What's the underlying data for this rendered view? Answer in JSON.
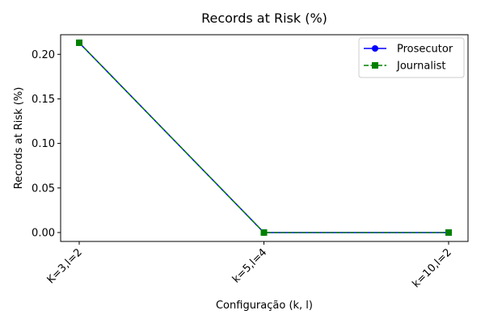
{
  "chart_data": {
    "type": "line",
    "title": "Records at Risk (%)",
    "xlabel": "Configuração (k, l)",
    "ylabel": "Records at Risk (%)",
    "categories": [
      "K=3,l=2",
      "k=5,l=4",
      "k=10,l=2"
    ],
    "yticks": [
      "0.00",
      "0.05",
      "0.10",
      "0.15",
      "0.20"
    ],
    "ylim": [
      -0.01,
      0.222
    ],
    "grid": false,
    "legend_position": "top-right",
    "series": [
      {
        "name": "Prosecutor",
        "values": [
          0.213,
          0.0,
          0.0
        ],
        "color": "#0000ff",
        "marker": "circle",
        "line_style": "solid"
      },
      {
        "name": "Journalist",
        "values": [
          0.213,
          0.0,
          0.0
        ],
        "color": "#008000",
        "marker": "square",
        "line_style": "dashed"
      }
    ]
  }
}
